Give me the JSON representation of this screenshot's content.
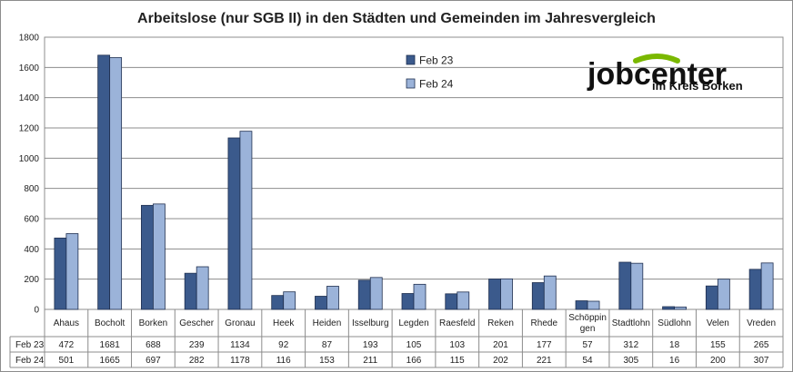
{
  "chart_data": {
    "type": "bar",
    "title": "Arbeitslose (nur SGB II) in den Städten und Gemeinden im Jahresvergleich",
    "xlabel": "",
    "ylabel": "",
    "ylim": [
      0,
      1800
    ],
    "yticks": [
      0,
      200,
      400,
      600,
      800,
      1000,
      1200,
      1400,
      1600,
      1800
    ],
    "grid": true,
    "legend": "top-center",
    "categories": [
      "Ahaus",
      "Bocholt",
      "Borken",
      "Gescher",
      "Gronau",
      "Heek",
      "Heiden",
      "Isselburg",
      "Legden",
      "Raesfeld",
      "Reken",
      "Rhede",
      "Schöppingen",
      "Stadtlohn",
      "Südlohn",
      "Velen",
      "Vreden"
    ],
    "category_lines": [
      [
        "Ahaus"
      ],
      [
        "Bocholt"
      ],
      [
        "Borken"
      ],
      [
        "Gescher"
      ],
      [
        "Gronau"
      ],
      [
        "Heek"
      ],
      [
        "Heiden"
      ],
      [
        "Isselburg"
      ],
      [
        "Legden"
      ],
      [
        "Raesfeld"
      ],
      [
        "Reken"
      ],
      [
        "Rhede"
      ],
      [
        "Schöppin",
        "gen"
      ],
      [
        "Stadtlohn"
      ],
      [
        "Südlohn"
      ],
      [
        "Velen"
      ],
      [
        "Vreden"
      ]
    ],
    "series": [
      {
        "name": "Feb 23",
        "color": "#3b5a8c",
        "values": [
          472,
          1681,
          688,
          239,
          1134,
          92,
          87,
          193,
          105,
          103,
          201,
          177,
          57,
          312,
          18,
          155,
          265
        ]
      },
      {
        "name": "Feb 24",
        "color": "#9bb3d9",
        "values": [
          501,
          1665,
          697,
          282,
          1178,
          116,
          153,
          211,
          166,
          115,
          202,
          221,
          54,
          305,
          16,
          200,
          307
        ]
      }
    ]
  },
  "logo": {
    "brand_text": "jobcenter",
    "tagline": "im Kreis Borken",
    "accent_color": "#7ab800"
  }
}
